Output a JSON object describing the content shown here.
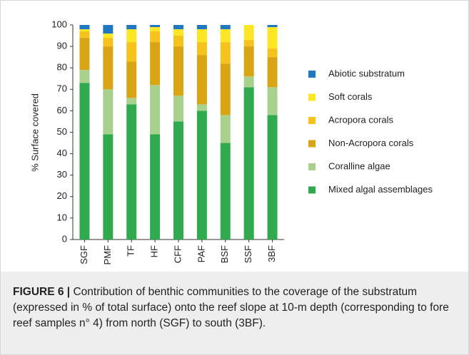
{
  "chart_data": {
    "type": "stacked-bar",
    "ylabel": "% Surface covered",
    "categories": [
      "SGF",
      "PMF",
      "TF",
      "HF",
      "CFF",
      "PAF",
      "BSF",
      "SSF",
      "3BF"
    ],
    "series": [
      {
        "name": "Mixed algal assemblages",
        "color": "#2faa4e",
        "values": [
          73,
          49,
          63,
          49,
          55,
          60,
          45,
          71,
          58
        ]
      },
      {
        "name": "Coralline algae",
        "color": "#a9d18e",
        "values": [
          6,
          21,
          3,
          23,
          12,
          3,
          13,
          5,
          13
        ]
      },
      {
        "name": "Non-Acropora corals",
        "color": "#d9a514",
        "values": [
          15,
          20,
          17,
          20,
          23,
          23,
          24,
          14,
          14
        ]
      },
      {
        "name": "Acropora corals",
        "color": "#f6c21c",
        "values": [
          3,
          4,
          9,
          5,
          5,
          6,
          10,
          3,
          4
        ]
      },
      {
        "name": "Soft corals",
        "color": "#fde725",
        "values": [
          1,
          2,
          6,
          2,
          3,
          6,
          6,
          7,
          10
        ]
      },
      {
        "name": "Abiotic substratum",
        "color": "#1f78c1",
        "values": [
          2,
          4,
          2,
          1,
          2,
          2,
          2,
          0,
          1
        ]
      }
    ],
    "ylim": [
      0,
      100
    ],
    "yticks": [
      0,
      10,
      20,
      30,
      40,
      50,
      60,
      70,
      80,
      90,
      100
    ],
    "grid": false
  },
  "caption": {
    "label": "FIGURE 6 |",
    "text": "Contribution of benthic communities to the coverage of the substratum (expressed in % of total surface) onto the reef slope at 10-m depth (corresponding to fore reef samples n° 4) from north (SGF) to south (3BF)."
  }
}
